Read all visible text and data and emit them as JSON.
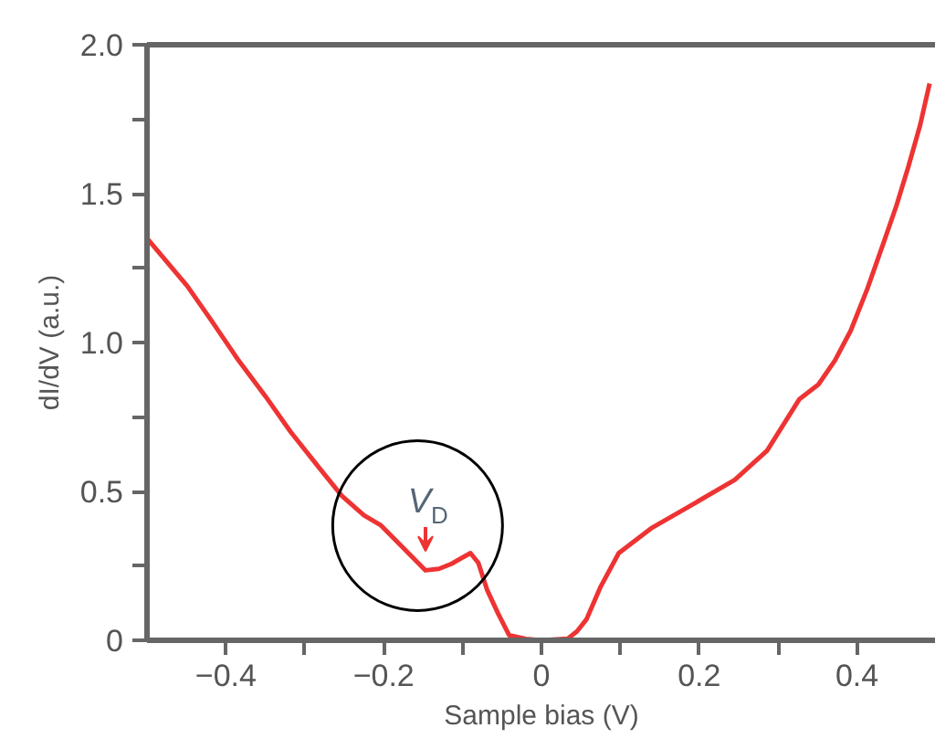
{
  "chart_data": {
    "type": "line",
    "xlabel": "Sample bias (V)",
    "ylabel": "dI/dV (a.u.)",
    "x": [
      -0.5,
      -0.449,
      -0.42,
      -0.384,
      -0.35,
      -0.318,
      -0.285,
      -0.253,
      -0.225,
      -0.204,
      -0.175,
      -0.147,
      -0.13,
      -0.114,
      -0.09,
      -0.08,
      -0.069,
      -0.055,
      -0.041,
      -0.02,
      0,
      0.033,
      0.045,
      0.057,
      0.075,
      0.098,
      0.139,
      0.196,
      0.245,
      0.286,
      0.327,
      0.351,
      0.372,
      0.392,
      0.413,
      0.433,
      0.45,
      0.465,
      0.48,
      0.492
    ],
    "series": [
      {
        "color": "#ee3333",
        "values": [
          1.35,
          1.19,
          1.08,
          0.94,
          0.82,
          0.7,
          0.59,
          0.485,
          0.42,
          0.387,
          0.31,
          0.235,
          0.24,
          0.257,
          0.293,
          0.26,
          0.17,
          0.09,
          0.017,
          0.005,
          0,
          0.005,
          0.03,
          0.07,
          0.18,
          0.293,
          0.376,
          0.463,
          0.539,
          0.637,
          0.81,
          0.859,
          0.94,
          1.04,
          1.18,
          1.33,
          1.46,
          1.59,
          1.73,
          1.87
        ]
      }
    ],
    "xlim": [
      -0.5,
      0.5
    ],
    "ylim": [
      0,
      2.0
    ],
    "xticks": [
      {
        "value": -0.4,
        "label": "−0.4"
      },
      {
        "value": -0.3,
        "label": null
      },
      {
        "value": -0.2,
        "label": "−0.2"
      },
      {
        "value": -0.1,
        "label": null
      },
      0,
      {
        "value": 0.1,
        "label": null
      },
      0.2,
      {
        "value": 0.3,
        "label": null
      },
      0.4
    ],
    "yticks": [
      0,
      {
        "value": 0.25,
        "label": null
      },
      0.5,
      {
        "value": 0.75,
        "label": null
      },
      {
        "value": 1.0,
        "label": "1.0"
      },
      {
        "value": 1.25,
        "label": null
      },
      1.5,
      {
        "value": 1.75,
        "label": null
      },
      {
        "value": 2.0,
        "label": "2.0"
      }
    ],
    "annotations": [
      {
        "text": "V$_{D}$",
        "x": -0.147,
        "y": 0.235
      }
    ],
    "grid": false,
    "line_style": "solid",
    "marker": "none"
  }
}
